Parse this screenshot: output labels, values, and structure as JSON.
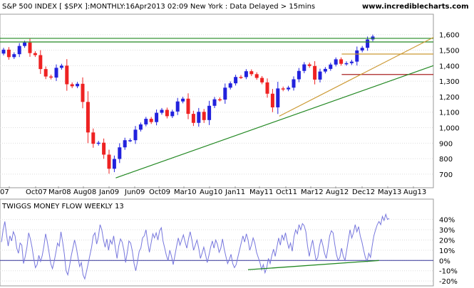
{
  "header": {
    "title": "S&P 500 INDEX [ $SPX ]:MONTHLY:16Apr2013 02:09 New York : Data Delayed > 15mins",
    "site": "www.incrediblecharts.com"
  },
  "colors": {
    "up_candle": "#2222dd",
    "down_candle": "#ee2222",
    "resistance": "#228822",
    "trendline": "#228822",
    "support_orange": "#cc9933",
    "support_red": "#aa2222",
    "money_flow": "#7777dd",
    "grid": "#dddddd"
  },
  "chart_data": [
    {
      "type": "candlestick",
      "title": "S&P 500 INDEX [ $SPX ]:MONTHLY",
      "x_tick_labels": [
        "07",
        "Oct07",
        "Mar08",
        "Aug08",
        "Jan09",
        "Jun09",
        "Oct09",
        "Mar10",
        "Aug10",
        "Jan11",
        "May11",
        "Oct11",
        "Mar12",
        "Aug12",
        "Dec12",
        "May13",
        "Aug13"
      ],
      "y_tick_labels": [
        "1,600",
        "1,500",
        "1,400",
        "1,300",
        "1,200",
        "1,100",
        "1,000",
        "900",
        "800",
        "700"
      ],
      "ylim": [
        640,
        1640
      ],
      "close_path": [
        [
          "Jun07",
          1503
        ],
        [
          "Jul07",
          1455
        ],
        [
          "Aug07",
          1474
        ],
        [
          "Sep07",
          1527
        ],
        [
          "Oct07",
          1549
        ],
        [
          "Nov07",
          1481
        ],
        [
          "Dec07",
          1468
        ],
        [
          "Jan08",
          1378
        ],
        [
          "Feb08",
          1330
        ],
        [
          "Mar08",
          1323
        ],
        [
          "Apr08",
          1386
        ],
        [
          "May08",
          1400
        ],
        [
          "Jun08",
          1280
        ],
        [
          "Jul08",
          1267
        ],
        [
          "Aug08",
          1283
        ],
        [
          "Sep08",
          1166
        ],
        [
          "Oct08",
          969
        ],
        [
          "Nov08",
          896
        ],
        [
          "Dec08",
          903
        ],
        [
          "Jan09",
          826
        ],
        [
          "Feb09",
          735
        ],
        [
          "Mar09",
          798
        ],
        [
          "Apr09",
          873
        ],
        [
          "May09",
          919
        ],
        [
          "Jun09",
          919
        ],
        [
          "Jul09",
          987
        ],
        [
          "Aug09",
          1021
        ],
        [
          "Sep09",
          1057
        ],
        [
          "Oct09",
          1036
        ],
        [
          "Nov09",
          1096
        ],
        [
          "Dec09",
          1115
        ],
        [
          "Jan10",
          1074
        ],
        [
          "Feb10",
          1104
        ],
        [
          "Mar10",
          1169
        ],
        [
          "Apr10",
          1187
        ],
        [
          "May10",
          1089
        ],
        [
          "Jun10",
          1031
        ],
        [
          "Jul10",
          1102
        ],
        [
          "Aug10",
          1049
        ],
        [
          "Sep10",
          1141
        ],
        [
          "Oct10",
          1183
        ],
        [
          "Nov10",
          1181
        ],
        [
          "Dec10",
          1258
        ],
        [
          "Jan11",
          1286
        ],
        [
          "Feb11",
          1327
        ],
        [
          "Mar11",
          1326
        ],
        [
          "Apr11",
          1364
        ],
        [
          "May11",
          1345
        ],
        [
          "Jun11",
          1321
        ],
        [
          "Jul11",
          1292
        ],
        [
          "Aug11",
          1219
        ],
        [
          "Sep11",
          1131
        ],
        [
          "Oct11",
          1253
        ],
        [
          "Nov11",
          1247
        ],
        [
          "Dec11",
          1258
        ],
        [
          "Jan12",
          1312
        ],
        [
          "Feb12",
          1366
        ],
        [
          "Mar12",
          1408
        ],
        [
          "Apr12",
          1398
        ],
        [
          "May12",
          1310
        ],
        [
          "Jun12",
          1362
        ],
        [
          "Jul12",
          1379
        ],
        [
          "Aug12",
          1407
        ],
        [
          "Sep12",
          1441
        ],
        [
          "Oct12",
          1412
        ],
        [
          "Nov12",
          1416
        ],
        [
          "Dec12",
          1426
        ],
        [
          "Jan13",
          1498
        ],
        [
          "Feb13",
          1515
        ],
        [
          "Mar13",
          1569
        ],
        [
          "Apr13",
          1588
        ]
      ],
      "horizontal_lines": [
        {
          "color_key": "resistance",
          "y": 1576,
          "from": "Jun07",
          "to": "Aug13"
        },
        {
          "color_key": "resistance",
          "y": 1553,
          "from": "Jun07",
          "to": "Aug13"
        },
        {
          "color_key": "support_orange",
          "y": 1475,
          "from": "Dec12",
          "to": "Aug13"
        },
        {
          "color_key": "support_red",
          "y": 1343,
          "from": "Dec12",
          "to": "Aug13"
        }
      ],
      "trendlines": [
        {
          "color_key": "trendline",
          "from": [
            "Mar09",
            676
          ],
          "to": [
            "Aug13",
            1400
          ]
        },
        {
          "color_key": "support_orange",
          "from": [
            "Oct11",
            1074
          ],
          "to": [
            "Aug13",
            1582
          ]
        }
      ]
    },
    {
      "type": "line",
      "title": "TWIGGS MONEY FLOW WEEKLY 13",
      "y_tick_labels": [
        "40%",
        "30%",
        "20%",
        "10%",
        "0%",
        "-10%",
        "-20%"
      ],
      "ylim": [
        -22,
        46
      ],
      "series": [
        {
          "values": [
            18,
            30,
            38,
            25,
            14,
            24,
            19,
            28,
            24,
            12,
            7,
            17,
            15,
            -3,
            4,
            13,
            27,
            21,
            13,
            2,
            -7,
            -4,
            5,
            -1,
            5,
            14,
            26,
            18,
            8,
            -3,
            -8,
            -1,
            8,
            17,
            14,
            28,
            18,
            6,
            -10,
            -14,
            -6,
            4,
            12,
            20,
            13,
            3,
            -6,
            -2,
            -14,
            -18,
            -11,
            -3,
            5,
            13,
            24,
            27,
            16,
            23,
            35,
            30,
            20,
            13,
            21,
            10,
            20,
            16,
            24,
            12,
            2,
            14,
            21,
            18,
            10,
            -2,
            8,
            19,
            17,
            9,
            -3,
            -10,
            -1,
            9,
            12,
            22,
            24,
            30,
            18,
            8,
            17,
            26,
            22,
            27,
            20,
            29,
            32,
            19,
            12,
            5,
            0,
            10,
            4,
            -4,
            5,
            14,
            22,
            15,
            20,
            25,
            18,
            12,
            21,
            28,
            20,
            10,
            15,
            20,
            12,
            2,
            7,
            13,
            6,
            -2,
            5,
            13,
            19,
            12,
            20,
            16,
            8,
            12,
            21,
            11,
            4,
            -3,
            1,
            6,
            -3,
            -7,
            -4,
            3,
            10,
            17,
            24,
            18,
            26,
            20,
            10,
            15,
            22,
            17,
            8,
            3,
            -2,
            -9,
            -4,
            -12,
            -7,
            2,
            -3,
            5,
            11,
            4,
            13,
            22,
            15,
            25,
            20,
            27,
            19,
            12,
            17,
            9,
            23,
            30,
            26,
            35,
            30,
            36,
            34,
            28,
            14,
            4,
            13,
            20,
            10,
            0,
            3,
            14,
            21,
            15,
            7,
            2,
            12,
            24,
            29,
            27,
            16,
            6,
            0,
            3,
            12,
            4,
            0,
            10,
            20,
            30,
            22,
            27,
            35,
            28,
            33,
            24,
            18,
            10,
            3,
            -1,
            7,
            3,
            14,
            24,
            30,
            35,
            38,
            35,
            43,
            39,
            45,
            40,
            41
          ]
        }
      ],
      "trendline": {
        "color_key": "trendline",
        "from_index": 145,
        "from_value": -9,
        "to_index": 222,
        "to_value": 0
      }
    }
  ]
}
